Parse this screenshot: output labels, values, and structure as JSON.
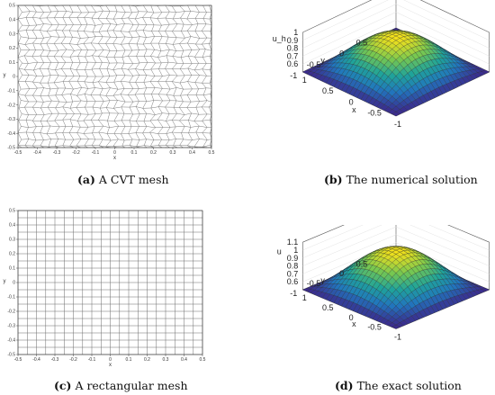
{
  "captions": {
    "a": {
      "tag": "(a)",
      "text": "A CVT mesh"
    },
    "b": {
      "tag": "(b)",
      "text": "The numerical solution"
    },
    "c": {
      "tag": "(c)",
      "text": "A rectangular mesh"
    },
    "d": {
      "tag": "(d)",
      "text": "The exact solution"
    }
  },
  "mesh_a": {
    "xticks": [
      "-0.5",
      "-0.4",
      "-0.3",
      "-0.2",
      "-0.1",
      "0",
      "0.1",
      "0.2",
      "0.3",
      "0.4",
      "0.5"
    ],
    "yticks": [
      "0.5",
      "0.4",
      "0.3",
      "0.2",
      "0.1",
      "0",
      "-0.1",
      "-0.2",
      "-0.3",
      "-0.4",
      "-0.5"
    ],
    "xlabel": "x",
    "ylabel": "y"
  },
  "mesh_c": {
    "xticks": [
      "-0.5",
      "-0.4",
      "-0.3",
      "-0.2",
      "-0.1",
      "0",
      "0.1",
      "0.2",
      "0.3",
      "0.4",
      "0.5"
    ],
    "yticks": [
      "0.5",
      "0.4",
      "0.3",
      "0.2",
      "0.1",
      "0",
      "-0.1",
      "-0.2",
      "-0.3",
      "-0.4",
      "-0.5"
    ],
    "xlabel": "x",
    "ylabel": "y"
  },
  "plot_b": {
    "zticks": [
      "1",
      "0.9",
      "0.8",
      "0.7",
      "0.6"
    ],
    "yticks": [
      "0.5",
      "0",
      "-0.5",
      "-1"
    ],
    "xticks": [
      "1",
      "0.5",
      "0",
      "-0.5",
      "-1"
    ],
    "zlabel": "u_h",
    "xlabel": "x",
    "ylabel": "y"
  },
  "plot_d": {
    "zticks": [
      "1.1",
      "1",
      "0.9",
      "0.8",
      "0.7",
      "0.6"
    ],
    "yticks": [
      "0.5",
      "0",
      "-0.5",
      "-1"
    ],
    "xticks": [
      "1",
      "0.5",
      "0",
      "-0.5",
      "-1"
    ],
    "zlabel": "u",
    "xlabel": "x",
    "ylabel": "y"
  },
  "colors": {
    "surface_low": "#3b2a8c",
    "surface_mid": "#1fa39a",
    "surface_high": "#f5e11a",
    "mesh_line": "#6a6a6a"
  }
}
